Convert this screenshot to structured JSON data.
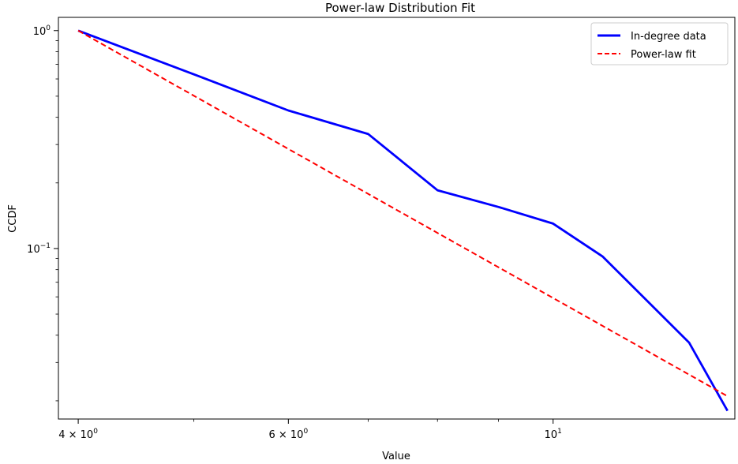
{
  "chart_data": {
    "type": "line",
    "title": "Power-law Distribution Fit",
    "xlabel": "Value",
    "ylabel": "CCDF",
    "x_scale": "log",
    "y_scale": "log",
    "xlim": [
      3.85,
      14.2
    ],
    "ylim": [
      0.0165,
      1.15
    ],
    "x_ticks": [
      {
        "value": 4,
        "base": "4 × 10",
        "exp": "0"
      },
      {
        "value": 6,
        "base": "6 × 10",
        "exp": "0"
      },
      {
        "value": 10,
        "base": "10",
        "exp": "1"
      }
    ],
    "y_ticks": [
      {
        "value": 1,
        "base": "10",
        "exp": "0"
      },
      {
        "value": 0.1,
        "base": "10",
        "exp": "−1"
      }
    ],
    "grid": false,
    "legend_position": "top-right",
    "series": [
      {
        "name": "In-degree data",
        "color": "#0000ff",
        "style": "solid",
        "x": [
          4,
          5,
          6,
          7,
          8,
          9,
          10,
          11,
          13,
          14
        ],
        "y": [
          1.0,
          0.63,
          0.43,
          0.335,
          0.185,
          0.155,
          0.13,
          0.092,
          0.037,
          0.018
        ]
      },
      {
        "name": "Power-law fit",
        "color": "#ff0000",
        "style": "dashed",
        "x": [
          4,
          14
        ],
        "y": [
          1.0,
          0.021
        ]
      }
    ]
  }
}
